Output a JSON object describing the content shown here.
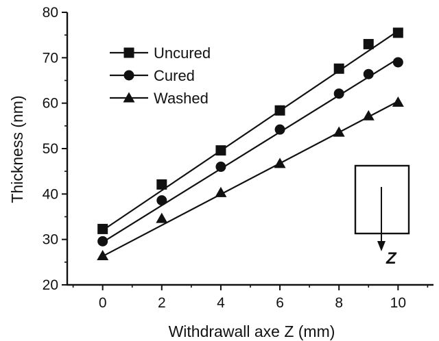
{
  "chart_data": {
    "type": "line",
    "xlabel": "Withdrawall axe Z (mm)",
    "ylabel": "Thickness (nm)",
    "xlim": [
      -1.2,
      11.2
    ],
    "ylim": [
      20,
      80
    ],
    "xticks": [
      0,
      2,
      4,
      6,
      8,
      10
    ],
    "yticks": [
      20,
      30,
      40,
      50,
      60,
      70,
      80
    ],
    "x_minor_step": 1,
    "y_minor_step": 5,
    "grid": false,
    "legend_placement": "top-left",
    "x": [
      0,
      2,
      4,
      6,
      8,
      9,
      10
    ],
    "series": [
      {
        "name": "Uncured",
        "marker": "square",
        "values": [
          32.3,
          42.1,
          49.6,
          58.4,
          67.6,
          73.0,
          75.5
        ],
        "fit": [
          32.0,
          75.9
        ]
      },
      {
        "name": "Cured",
        "marker": "circle",
        "values": [
          29.6,
          38.6,
          46.0,
          54.2,
          62.1,
          66.4,
          69.0
        ],
        "fit": [
          29.4,
          69.8
        ]
      },
      {
        "name": "Washed",
        "marker": "triangle",
        "values": [
          26.4,
          34.6,
          40.3,
          46.7,
          53.6,
          57.2,
          60.2
        ],
        "fit": [
          26.3,
          60.4
        ]
      }
    ],
    "inset": {
      "label": "Z",
      "description": "substrate sketch with downward withdrawal arrow"
    },
    "colors": {
      "line": "#111111",
      "background": "#ffffff"
    }
  }
}
